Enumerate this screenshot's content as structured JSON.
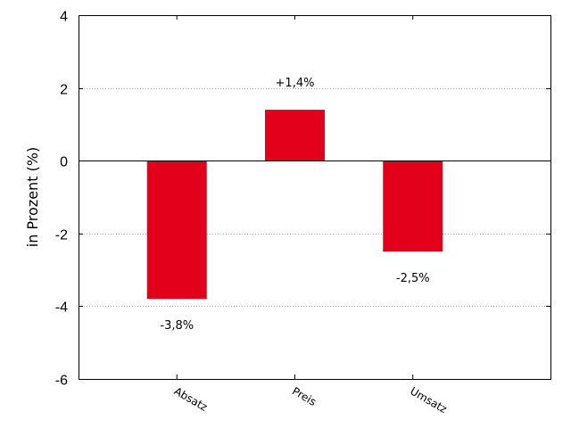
{
  "chart_data": {
    "type": "bar",
    "categories": [
      "Absatz",
      "Preis",
      "Umsatz"
    ],
    "values": [
      -3.8,
      1.4,
      -2.5
    ],
    "data_labels": [
      "-3,8%",
      "+1,4%",
      "-2,5%"
    ],
    "ylabel": "in Prozent (%)",
    "ylim": [
      -6,
      4
    ],
    "yticks": [
      -6,
      -4,
      -2,
      0,
      2,
      4
    ],
    "grid": true,
    "bar_color": "#e2001a",
    "zero_line_color": "#000000",
    "grid_color": "#aaaaaa"
  }
}
